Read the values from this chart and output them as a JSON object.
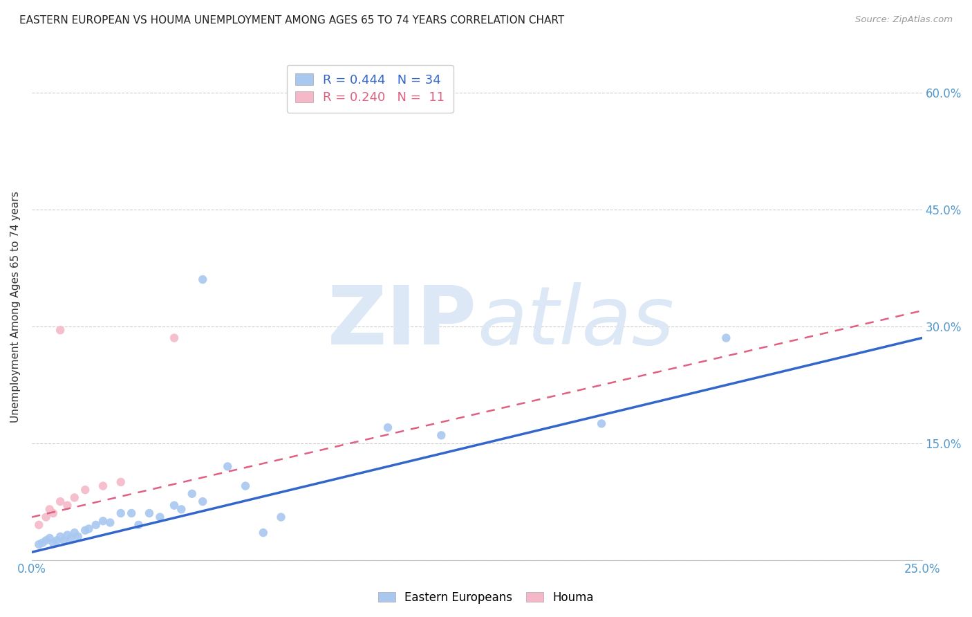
{
  "title": "EASTERN EUROPEAN VS HOUMA UNEMPLOYMENT AMONG AGES 65 TO 74 YEARS CORRELATION CHART",
  "source": "Source: ZipAtlas.com",
  "ylabel": "Unemployment Among Ages 65 to 74 years",
  "xlim": [
    0.0,
    0.25
  ],
  "ylim": [
    0.0,
    0.65
  ],
  "xticks": [
    0.0,
    0.05,
    0.1,
    0.15,
    0.2,
    0.25
  ],
  "yticks": [
    0.0,
    0.15,
    0.3,
    0.45,
    0.6
  ],
  "right_ytick_labels": [
    "",
    "15.0%",
    "30.0%",
    "45.0%",
    "60.0%"
  ],
  "xtick_labels": [
    "0.0%",
    "",
    "",
    "",
    "",
    "25.0%"
  ],
  "blue_R": 0.444,
  "blue_N": 34,
  "pink_R": 0.24,
  "pink_N": 11,
  "blue_color": "#A8C8F0",
  "blue_line_color": "#3366CC",
  "pink_color": "#F5B8C8",
  "pink_line_color": "#E06080",
  "background_color": "#ffffff",
  "grid_color": "#cccccc",
  "title_color": "#222222",
  "axis_label_color": "#333333",
  "tick_label_color": "#5599cc",
  "watermark_color": "#dce8f5",
  "legend_label_blue": "Eastern Europeans",
  "legend_label_pink": "Houma",
  "blue_x": [
    0.002,
    0.003,
    0.004,
    0.005,
    0.006,
    0.007,
    0.008,
    0.009,
    0.01,
    0.011,
    0.012,
    0.013,
    0.015,
    0.016,
    0.018,
    0.02,
    0.022,
    0.025,
    0.028,
    0.03,
    0.033,
    0.036,
    0.04,
    0.042,
    0.045,
    0.048,
    0.055,
    0.06,
    0.065,
    0.07,
    0.1,
    0.115,
    0.16,
    0.195
  ],
  "blue_y": [
    0.02,
    0.022,
    0.025,
    0.028,
    0.022,
    0.025,
    0.03,
    0.025,
    0.032,
    0.028,
    0.035,
    0.03,
    0.038,
    0.04,
    0.045,
    0.05,
    0.048,
    0.06,
    0.06,
    0.045,
    0.06,
    0.055,
    0.07,
    0.065,
    0.085,
    0.075,
    0.12,
    0.095,
    0.035,
    0.055,
    0.17,
    0.16,
    0.175,
    0.285
  ],
  "blue_outlier_x": [
    0.048
  ],
  "blue_outlier_y": [
    0.36
  ],
  "pink_x": [
    0.002,
    0.004,
    0.005,
    0.006,
    0.008,
    0.01,
    0.012,
    0.015,
    0.02,
    0.025,
    0.04
  ],
  "pink_y": [
    0.045,
    0.055,
    0.065,
    0.06,
    0.075,
    0.07,
    0.08,
    0.09,
    0.095,
    0.1,
    0.285
  ],
  "blue_line_x": [
    0.0,
    0.25
  ],
  "blue_line_y": [
    0.01,
    0.285
  ],
  "pink_line_x": [
    0.0,
    0.25
  ],
  "pink_line_y": [
    0.055,
    0.32
  ],
  "marker_size": 80
}
